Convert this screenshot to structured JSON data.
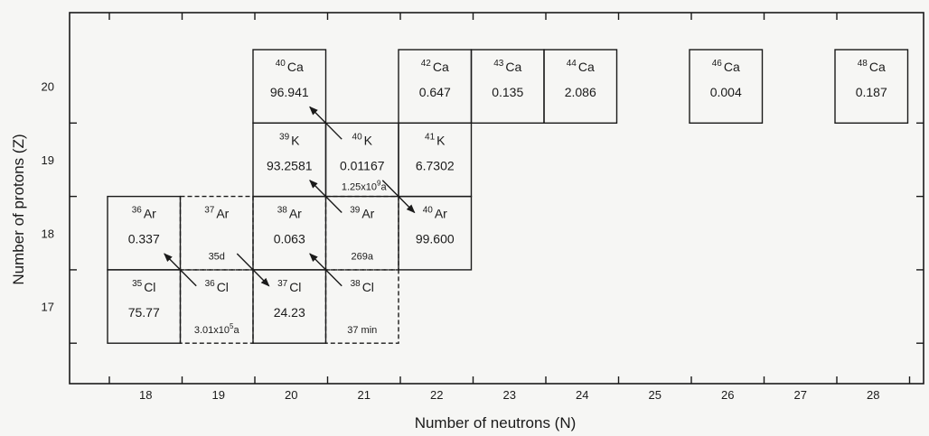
{
  "axes": {
    "x_title": "Number of neutrons (N)",
    "y_title": "Number of protons (Z)",
    "x_ticks": [
      "18",
      "19",
      "20",
      "21",
      "22",
      "23",
      "24",
      "25",
      "26",
      "27",
      "28"
    ],
    "y_ticks": [
      "17",
      "18",
      "19",
      "20"
    ]
  },
  "nuclides": [
    {
      "id": "ca40",
      "mass": "40",
      "symbol": "Ca",
      "value": "96.941",
      "N": 20,
      "Z": 20,
      "stable": true
    },
    {
      "id": "ca42",
      "mass": "42",
      "symbol": "Ca",
      "value": "0.647",
      "N": 22,
      "Z": 20,
      "stable": true
    },
    {
      "id": "ca43",
      "mass": "43",
      "symbol": "Ca",
      "value": "0.135",
      "N": 23,
      "Z": 20,
      "stable": true
    },
    {
      "id": "ca44",
      "mass": "44",
      "symbol": "Ca",
      "value": "2.086",
      "N": 24,
      "Z": 20,
      "stable": true
    },
    {
      "id": "ca46",
      "mass": "46",
      "symbol": "Ca",
      "value": "0.004",
      "N": 26,
      "Z": 20,
      "stable": true
    },
    {
      "id": "ca48",
      "mass": "48",
      "symbol": "Ca",
      "value": "0.187",
      "N": 28,
      "Z": 20,
      "stable": true
    },
    {
      "id": "k39",
      "mass": "39",
      "symbol": "K",
      "value": "93.2581",
      "N": 20,
      "Z": 19,
      "stable": true
    },
    {
      "id": "k40",
      "mass": "40",
      "symbol": "K",
      "value": "0.01167",
      "N": 21,
      "Z": 19,
      "stable": true,
      "note": "1.25x10",
      "note_exp": "9",
      "note_unit": "a"
    },
    {
      "id": "k41",
      "mass": "41",
      "symbol": "K",
      "value": "6.7302",
      "N": 22,
      "Z": 19,
      "stable": true
    },
    {
      "id": "ar36",
      "mass": "36",
      "symbol": "Ar",
      "value": "0.337",
      "N": 18,
      "Z": 18,
      "stable": true
    },
    {
      "id": "ar37",
      "mass": "37",
      "symbol": "Ar",
      "value": "35d",
      "N": 19,
      "Z": 18,
      "stable": false
    },
    {
      "id": "ar38",
      "mass": "38",
      "symbol": "Ar",
      "value": "0.063",
      "N": 20,
      "Z": 18,
      "stable": true
    },
    {
      "id": "ar39",
      "mass": "39",
      "symbol": "Ar",
      "value": "269a",
      "N": 21,
      "Z": 18,
      "stable": false
    },
    {
      "id": "ar40",
      "mass": "40",
      "symbol": "Ar",
      "value": "99.600",
      "N": 22,
      "Z": 18,
      "stable": true
    },
    {
      "id": "cl35",
      "mass": "35",
      "symbol": "Cl",
      "value": "75.77",
      "N": 18,
      "Z": 17,
      "stable": true
    },
    {
      "id": "cl36",
      "mass": "36",
      "symbol": "Cl",
      "value": "3.01x10",
      "value_exp": "5",
      "value_unit": "a",
      "N": 19,
      "Z": 17,
      "stable": false
    },
    {
      "id": "cl37",
      "mass": "37",
      "symbol": "Cl",
      "value": "24.23",
      "N": 20,
      "Z": 17,
      "stable": true
    },
    {
      "id": "cl38",
      "mass": "38",
      "symbol": "Cl",
      "value": "37 min",
      "N": 21,
      "Z": 17,
      "stable": false
    }
  ],
  "decays": [
    {
      "from": "ar37",
      "to": "cl37"
    },
    {
      "from": "cl36",
      "to": "ar36"
    },
    {
      "from": "cl38",
      "to": "ar38"
    },
    {
      "from": "ar39",
      "to": "k39"
    },
    {
      "from": "k40",
      "to": "ca40"
    },
    {
      "from": "k40",
      "to": "ar40"
    }
  ]
}
